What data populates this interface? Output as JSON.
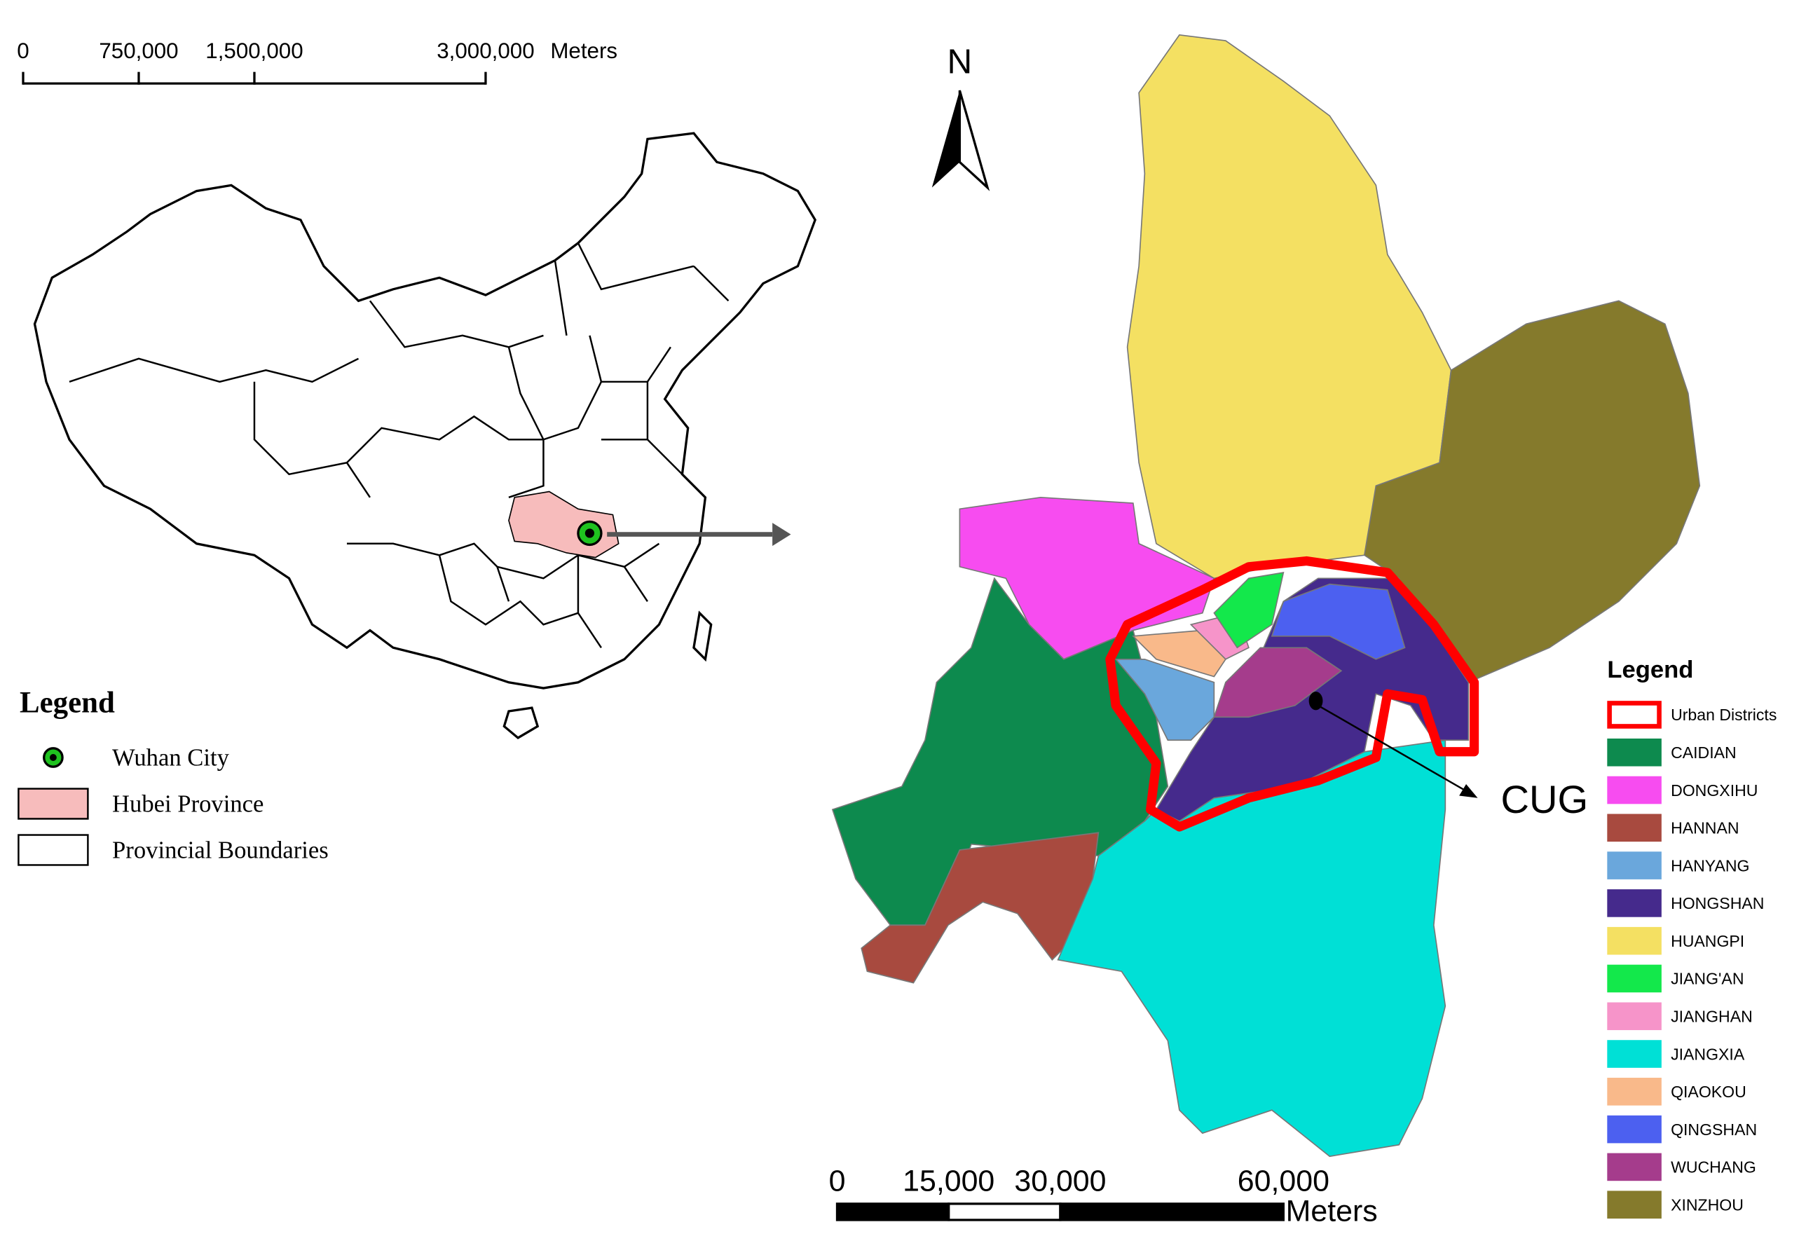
{
  "left_map": {
    "scale_bar": {
      "ticks": [
        {
          "value": 0,
          "label": "0"
        },
        {
          "value": 750000,
          "label": "750,000"
        },
        {
          "value": 1500000,
          "label": "1,500,000"
        },
        {
          "value": 3000000,
          "label": "3,000,000"
        }
      ],
      "unit": "Meters"
    },
    "legend": {
      "title": "Legend",
      "items": [
        {
          "label": "Wuhan City",
          "symbol": "point",
          "color": "#1fc21f"
        },
        {
          "label": "Hubei Province",
          "symbol": "area",
          "color": "#f7bcbc"
        },
        {
          "label": "Provincial Boundaries",
          "symbol": "area",
          "color": "#ffffff"
        }
      ]
    }
  },
  "right_map": {
    "north": "N",
    "annotation": "CUG",
    "scale_bar": {
      "ticks": [
        {
          "value": 0,
          "label": "0"
        },
        {
          "value": 15000,
          "label": "15,000"
        },
        {
          "value": 30000,
          "label": "30,000"
        },
        {
          "value": 60000,
          "label": "60,000"
        }
      ],
      "unit": "Meters"
    },
    "legend": {
      "title": "Legend",
      "items": [
        {
          "label": "Urban Districts",
          "color": "#ff0000",
          "outline": true
        },
        {
          "label": "CAIDIAN",
          "color": "#0d8a4e"
        },
        {
          "label": "DONGXIHU",
          "color": "#f74cf0"
        },
        {
          "label": "HANNAN",
          "color": "#a84a3f"
        },
        {
          "label": "HANYANG",
          "color": "#6aa7dc"
        },
        {
          "label": "HONGSHAN",
          "color": "#452a8c"
        },
        {
          "label": "HUANGPI",
          "color": "#f4e062"
        },
        {
          "label": "JIANG'AN",
          "color": "#13e84b"
        },
        {
          "label": "JIANGHAN",
          "color": "#f694c9"
        },
        {
          "label": "JIANGXIA",
          "color": "#00e0d6"
        },
        {
          "label": "QIAOKOU",
          "color": "#f9b98a"
        },
        {
          "label": "QINGSHAN",
          "color": "#4c60f0"
        },
        {
          "label": "WUCHANG",
          "color": "#a53c8c"
        },
        {
          "label": "XINZHOU",
          "color": "#857a2c"
        }
      ]
    }
  }
}
